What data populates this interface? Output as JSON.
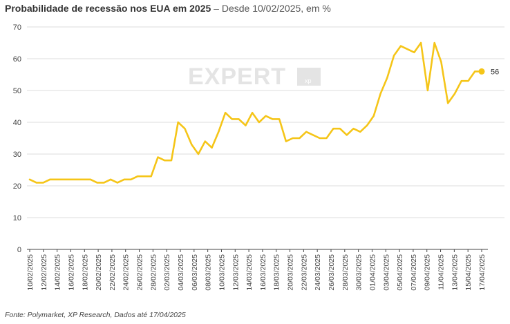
{
  "title": "Probabilidade de recessão nos EUA em 2025",
  "subtitle": " – Desde 10/02/2025, em %",
  "source": "Fonte: Polymarket, XP Research, Dados até 17/04/2025",
  "watermark": {
    "main": "EXPERT",
    "badge": "xp"
  },
  "colors": {
    "line": "#F5C518",
    "grid": "#dedede",
    "axis": "#444444",
    "watermark": "#e4e4e4"
  },
  "chart_data": {
    "type": "line",
    "title": "Probabilidade de recessão nos EUA em 2025",
    "xlabel": "",
    "ylabel": "",
    "ylim": [
      0,
      70
    ],
    "yticks": [
      0,
      10,
      20,
      30,
      40,
      50,
      60,
      70
    ],
    "grid": true,
    "xtick_labels": [
      "10/02/2025",
      "12/02/2025",
      "14/02/2025",
      "16/02/2025",
      "18/02/2025",
      "20/02/2025",
      "22/02/2025",
      "24/02/2025",
      "26/02/2025",
      "28/02/2025",
      "02/03/2025",
      "04/03/2025",
      "06/03/2025",
      "08/03/2025",
      "10/03/2025",
      "12/03/2025",
      "14/03/2025",
      "16/03/2025",
      "18/03/2025",
      "20/03/2025",
      "22/03/2025",
      "24/03/2025",
      "26/03/2025",
      "28/03/2025",
      "30/03/2025",
      "01/04/2025",
      "03/04/2025",
      "05/04/2025",
      "07/04/2025",
      "09/04/2025",
      "11/04/2025",
      "13/04/2025",
      "15/04/2025",
      "17/04/2025"
    ],
    "end_label": "56",
    "series": [
      {
        "values": [
          22,
          21,
          21,
          22,
          22,
          22,
          22,
          22,
          22,
          22,
          21,
          21,
          22,
          21,
          22,
          22,
          23,
          23,
          23,
          29,
          28,
          28,
          40,
          38,
          33,
          30,
          34,
          32,
          37,
          43,
          41,
          41,
          39,
          43,
          40,
          42,
          41,
          41,
          34,
          35,
          35,
          37,
          36,
          35,
          35,
          38,
          38,
          36,
          38,
          37,
          39,
          42,
          49,
          54,
          61,
          64,
          63,
          62,
          65,
          50,
          65,
          59,
          46,
          49,
          53,
          53,
          56,
          56
        ]
      }
    ]
  }
}
